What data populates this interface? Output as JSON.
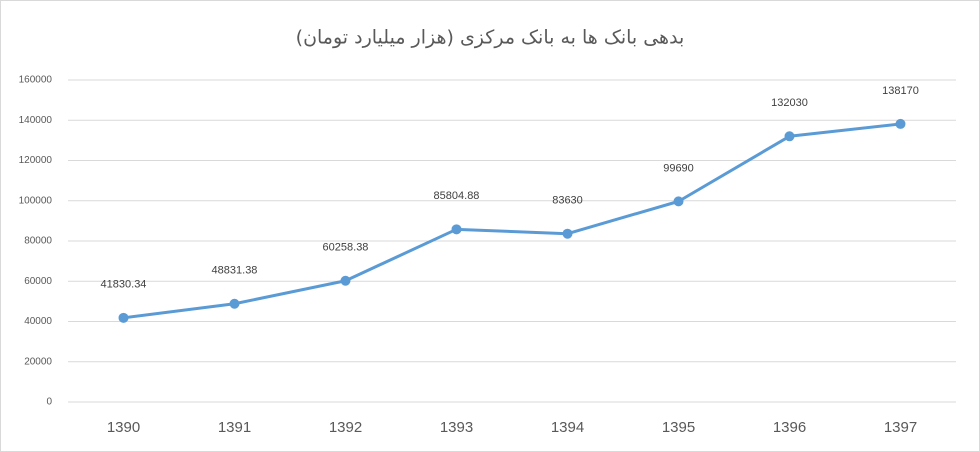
{
  "chart_data": {
    "type": "line",
    "title": "بدهی بانک ها به بانک مرکزی (هزار میلیارد تومان)",
    "categories": [
      "1390",
      "1391",
      "1392",
      "1393",
      "1394",
      "1395",
      "1396",
      "1397"
    ],
    "values": [
      41830.34,
      48831.38,
      60258.38,
      85804.88,
      83630,
      99690,
      132030,
      138170
    ],
    "color": "#5b9bd5",
    "ylim": [
      0,
      160000
    ],
    "yticks": [
      0,
      20000,
      40000,
      60000,
      80000,
      100000,
      120000,
      140000,
      160000
    ],
    "grid": true
  }
}
